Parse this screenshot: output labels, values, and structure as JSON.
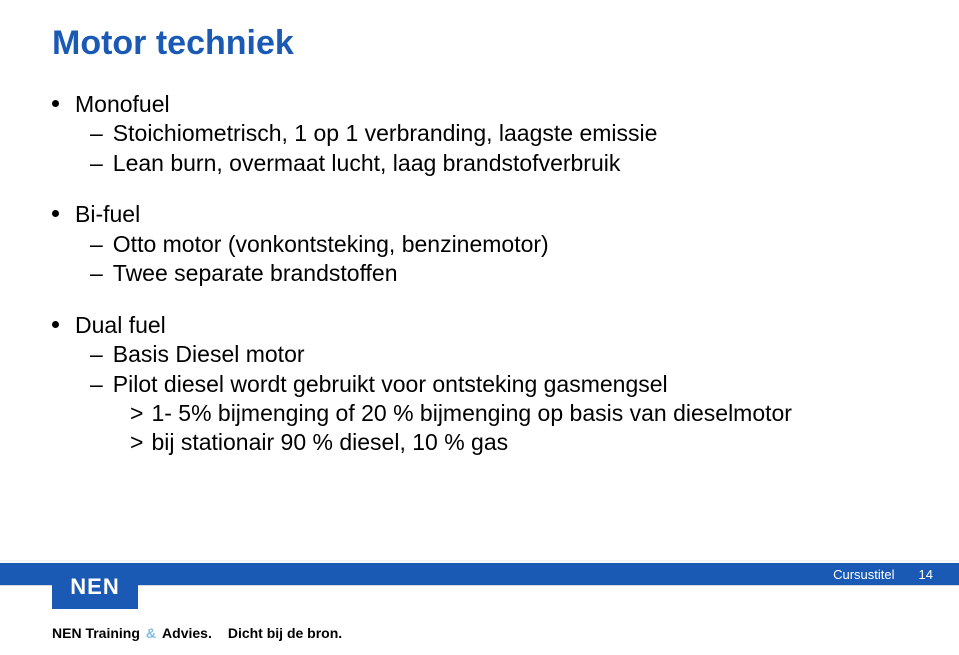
{
  "colors": {
    "title": "#1a5ab4",
    "body": "#000000",
    "footer_bar": "#1a5ab4",
    "footer_text": "#ffffff",
    "logo_bg": "#1a5ab4",
    "amp": "#7dbde2"
  },
  "fonts": {
    "title_size": 34,
    "body_size": 23,
    "line_height": 1.28
  },
  "title": "Motor techniek",
  "groups": [
    {
      "l1": "Monofuel",
      "l2": [
        {
          "text": "Stoichiometrisch, 1 op 1 verbranding, laagste emissie"
        },
        {
          "text": "Lean burn, overmaat lucht, laag brandstofverbruik"
        }
      ]
    },
    {
      "l1": "Bi-fuel",
      "l2": [
        {
          "text": "Otto motor (vonkontsteking, benzinemotor)"
        },
        {
          "text": "Twee separate brandstoffen"
        }
      ]
    },
    {
      "l1": "Dual fuel",
      "l2": [
        {
          "text": "Basis Diesel motor"
        },
        {
          "text": "Pilot diesel wordt gebruikt voor ontsteking gasmengsel",
          "l3": [
            "1- 5% bijmenging of 20 % bijmenging op basis van dieselmotor",
            "bij stationair 90 % diesel, 10 % gas"
          ]
        }
      ]
    }
  ],
  "footer": {
    "label": "Cursustitel",
    "page": "14",
    "logo": "NEN",
    "tagline_1": "NEN Training",
    "tagline_amp": "&",
    "tagline_2": "Advies.",
    "tagline_3": "Dicht bij de bron."
  }
}
